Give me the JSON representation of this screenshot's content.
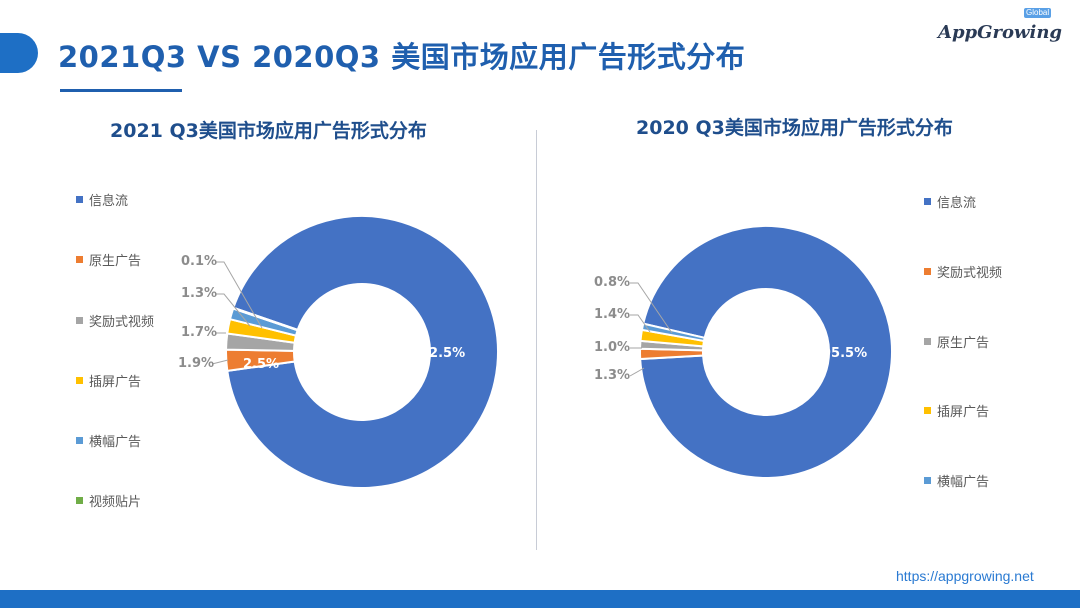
{
  "header": {
    "title": "2021Q3 VS 2020Q3 美国市场应用广告形式分布",
    "logo_text": "AppGrowing",
    "logo_badge": "Global"
  },
  "footer": {
    "url": "https://appgrowing.net"
  },
  "chart_data": [
    {
      "type": "pie",
      "donut": true,
      "title": "2021 Q3美国市场应用广告形式分布",
      "legend_position": "left",
      "categories": [
        "信息流",
        "原生广告",
        "奖励式视频",
        "插屏广告",
        "横幅广告",
        "视频贴片"
      ],
      "values": [
        92.5,
        2.5,
        1.9,
        1.7,
        1.3,
        0.1
      ],
      "labels": [
        "92.5%",
        "2.5%",
        "1.9%",
        "1.7%",
        "1.3%",
        "0.1%"
      ],
      "colors": [
        "#4472c4",
        "#ed7d31",
        "#a5a5a5",
        "#ffc000",
        "#5b9bd5",
        "#70ad47"
      ]
    },
    {
      "type": "pie",
      "donut": true,
      "title": "2020 Q3美国市场应用广告形式分布",
      "legend_position": "right",
      "categories": [
        "信息流",
        "奖励式视频",
        "原生广告",
        "插屏广告",
        "横幅广告"
      ],
      "values": [
        95.5,
        1.3,
        1.0,
        1.4,
        0.8
      ],
      "labels": [
        "95.5%",
        "1.3%",
        "1.0%",
        "1.4%",
        "0.8%"
      ],
      "colors": [
        "#4472c4",
        "#ed7d31",
        "#a5a5a5",
        "#ffc000",
        "#5b9bd5"
      ]
    }
  ]
}
